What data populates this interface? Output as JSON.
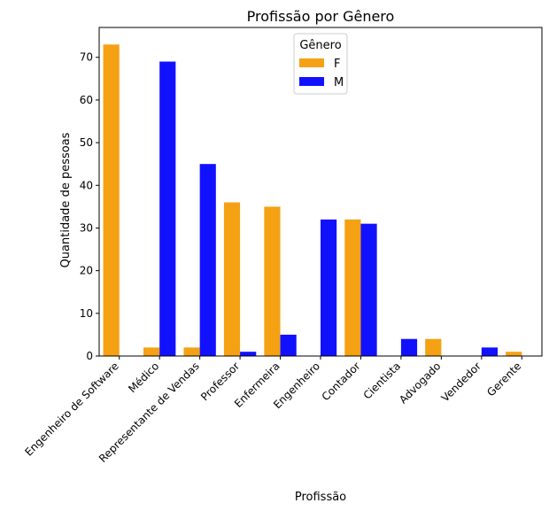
{
  "chart_data": {
    "type": "bar",
    "title": "Profissão por Gênero",
    "xlabel": "Profissão",
    "ylabel": "Quantidade de pessoas",
    "categories": [
      "Engenheiro de Software",
      "Médico",
      "Representante de Vendas",
      "Professor",
      "Enfermeira",
      "Engenheiro",
      "Contador",
      "Cientista",
      "Advogado",
      "Vendedor",
      "Gerente"
    ],
    "series": [
      {
        "name": "F",
        "color": "#f5a114",
        "values": [
          73,
          2,
          2,
          36,
          35,
          0,
          32,
          0,
          4,
          0,
          1
        ]
      },
      {
        "name": "M",
        "color": "#1111ff",
        "values": [
          0,
          69,
          45,
          1,
          5,
          32,
          31,
          4,
          0,
          2,
          0
        ]
      }
    ],
    "ylim": [
      0,
      77
    ],
    "yticks": [
      0,
      10,
      20,
      30,
      40,
      50,
      60,
      70
    ],
    "grid": false,
    "legend": {
      "title": "Gênero",
      "placement": "upper-center"
    }
  }
}
